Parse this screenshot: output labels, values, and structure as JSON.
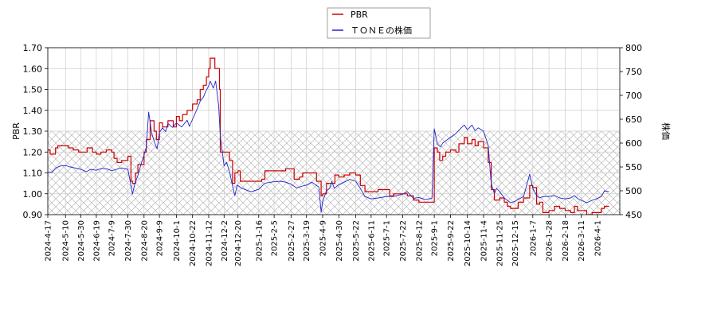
{
  "chart_data": {
    "type": "line",
    "legend_position": "top-center",
    "grid": true,
    "left_axis": {
      "label": "PBR",
      "range": [
        0.9,
        1.7
      ],
      "ticks": [
        "0.90",
        "1.00",
        "1.10",
        "1.20",
        "1.30",
        "1.40",
        "1.50",
        "1.60",
        "1.70"
      ],
      "shaded_band": [
        0.9,
        1.3
      ]
    },
    "right_axis": {
      "label": "株価",
      "range": [
        450,
        800
      ],
      "ticks": [
        "450",
        "500",
        "550",
        "600",
        "650",
        "700",
        "750",
        "800"
      ]
    },
    "x_range": [
      "2024-04-17",
      "2026-04-30"
    ],
    "x_tick_labels": [
      "2024-4-17",
      "2024-5-10",
      "2024-5-30",
      "2024-6-19",
      "2024-7-9",
      "2024-7-30",
      "2024-8-20",
      "2024-9-9",
      "2024-10-1",
      "2024-10-22",
      "2024-11-12",
      "2024-12-2",
      "2024-12-20",
      "2025-1-16",
      "2025-2-5",
      "2025-2-27",
      "2025-3-19",
      "2025-4-9",
      "2025-4-30",
      "2025-5-22",
      "2025-6-11",
      "2025-7-1",
      "2025-7-22",
      "2025-8-12",
      "2025-9-1",
      "2025-9-22",
      "2025-10-14",
      "2025-11-4",
      "2025-11-25",
      "2025-12-15",
      "2026-1-7",
      "2026-1-28",
      "2026-2-18",
      "2026-3-11",
      "2026-4-1"
    ],
    "series": [
      {
        "name": "PBR",
        "axis": "left",
        "color": "#cc0000",
        "style": "step",
        "points": [
          [
            "2024-04-17",
            1.21
          ],
          [
            "2024-04-20",
            1.19
          ],
          [
            "2024-04-27",
            1.22
          ],
          [
            "2024-04-30",
            1.23
          ],
          [
            "2024-05-10",
            1.23
          ],
          [
            "2024-05-14",
            1.22
          ],
          [
            "2024-05-20",
            1.21
          ],
          [
            "2024-05-27",
            1.2
          ],
          [
            "2024-06-03",
            1.2
          ],
          [
            "2024-06-07",
            1.22
          ],
          [
            "2024-06-14",
            1.2
          ],
          [
            "2024-06-19",
            1.19
          ],
          [
            "2024-06-25",
            1.2
          ],
          [
            "2024-07-02",
            1.21
          ],
          [
            "2024-07-09",
            1.2
          ],
          [
            "2024-07-12",
            1.17
          ],
          [
            "2024-07-16",
            1.15
          ],
          [
            "2024-07-22",
            1.16
          ],
          [
            "2024-07-30",
            1.18
          ],
          [
            "2024-08-03",
            1.06
          ],
          [
            "2024-08-05",
            1.05
          ],
          [
            "2024-08-09",
            1.1
          ],
          [
            "2024-08-12",
            1.14
          ],
          [
            "2024-08-20",
            1.2
          ],
          [
            "2024-08-23",
            1.26
          ],
          [
            "2024-08-28",
            1.35
          ],
          [
            "2024-09-02",
            1.3
          ],
          [
            "2024-09-05",
            1.26
          ],
          [
            "2024-09-09",
            1.34
          ],
          [
            "2024-09-13",
            1.32
          ],
          [
            "2024-09-20",
            1.35
          ],
          [
            "2024-09-27",
            1.32
          ],
          [
            "2024-10-01",
            1.37
          ],
          [
            "2024-10-05",
            1.35
          ],
          [
            "2024-10-09",
            1.38
          ],
          [
            "2024-10-15",
            1.4
          ],
          [
            "2024-10-22",
            1.43
          ],
          [
            "2024-10-28",
            1.45
          ],
          [
            "2024-11-01",
            1.5
          ],
          [
            "2024-11-05",
            1.52
          ],
          [
            "2024-11-09",
            1.56
          ],
          [
            "2024-11-12",
            1.6
          ],
          [
            "2024-11-14",
            1.65
          ],
          [
            "2024-11-20",
            1.6
          ],
          [
            "2024-11-26",
            1.5
          ],
          [
            "2024-11-27",
            1.2
          ],
          [
            "2024-12-02",
            1.2
          ],
          [
            "2024-12-09",
            1.16
          ],
          [
            "2024-12-13",
            1.05
          ],
          [
            "2024-12-16",
            1.1
          ],
          [
            "2024-12-20",
            1.11
          ],
          [
            "2024-12-23",
            1.06
          ],
          [
            "2025-01-06",
            1.06
          ],
          [
            "2025-01-16",
            1.06
          ],
          [
            "2025-01-20",
            1.07
          ],
          [
            "2025-01-24",
            1.11
          ],
          [
            "2025-02-05",
            1.11
          ],
          [
            "2025-02-14",
            1.11
          ],
          [
            "2025-02-20",
            1.12
          ],
          [
            "2025-02-27",
            1.12
          ],
          [
            "2025-03-03",
            1.07
          ],
          [
            "2025-03-10",
            1.08
          ],
          [
            "2025-03-14",
            1.1
          ],
          [
            "2025-03-19",
            1.1
          ],
          [
            "2025-03-25",
            1.1
          ],
          [
            "2025-04-01",
            1.06
          ],
          [
            "2025-04-07",
            0.99
          ],
          [
            "2025-04-09",
            1.0
          ],
          [
            "2025-04-14",
            1.05
          ],
          [
            "2025-04-21",
            1.05
          ],
          [
            "2025-04-25",
            1.09
          ],
          [
            "2025-04-30",
            1.08
          ],
          [
            "2025-05-07",
            1.09
          ],
          [
            "2025-05-14",
            1.1
          ],
          [
            "2025-05-22",
            1.09
          ],
          [
            "2025-05-28",
            1.04
          ],
          [
            "2025-06-03",
            1.01
          ],
          [
            "2025-06-11",
            1.01
          ],
          [
            "2025-06-20",
            1.02
          ],
          [
            "2025-07-01",
            1.02
          ],
          [
            "2025-07-05",
            0.99
          ],
          [
            "2025-07-10",
            1.0
          ],
          [
            "2025-07-22",
            1.0
          ],
          [
            "2025-07-28",
            0.99
          ],
          [
            "2025-08-05",
            0.97
          ],
          [
            "2025-08-12",
            0.96
          ],
          [
            "2025-08-20",
            0.96
          ],
          [
            "2025-08-29",
            0.96
          ],
          [
            "2025-09-01",
            1.22
          ],
          [
            "2025-09-05",
            1.2
          ],
          [
            "2025-09-08",
            1.16
          ],
          [
            "2025-09-12",
            1.18
          ],
          [
            "2025-09-16",
            1.2
          ],
          [
            "2025-09-22",
            1.21
          ],
          [
            "2025-09-29",
            1.2
          ],
          [
            "2025-10-03",
            1.24
          ],
          [
            "2025-10-10",
            1.27
          ],
          [
            "2025-10-14",
            1.24
          ],
          [
            "2025-10-20",
            1.26
          ],
          [
            "2025-10-24",
            1.23
          ],
          [
            "2025-10-28",
            1.25
          ],
          [
            "2025-11-04",
            1.22
          ],
          [
            "2025-11-10",
            1.15
          ],
          [
            "2025-11-14",
            1.02
          ],
          [
            "2025-11-18",
            0.97
          ],
          [
            "2025-11-25",
            0.98
          ],
          [
            "2025-12-01",
            0.96
          ],
          [
            "2025-12-05",
            0.94
          ],
          [
            "2025-12-09",
            0.93
          ],
          [
            "2025-12-15",
            0.93
          ],
          [
            "2025-12-19",
            0.96
          ],
          [
            "2025-12-26",
            0.98
          ],
          [
            "2026-01-03",
            1.04
          ],
          [
            "2026-01-07",
            1.03
          ],
          [
            "2026-01-12",
            0.95
          ],
          [
            "2026-01-16",
            0.96
          ],
          [
            "2026-01-20",
            0.91
          ],
          [
            "2026-01-28",
            0.92
          ],
          [
            "2026-02-04",
            0.94
          ],
          [
            "2026-02-11",
            0.93
          ],
          [
            "2026-02-18",
            0.92
          ],
          [
            "2026-02-25",
            0.91
          ],
          [
            "2026-03-02",
            0.94
          ],
          [
            "2026-03-06",
            0.92
          ],
          [
            "2026-03-11",
            0.92
          ],
          [
            "2026-03-18",
            0.9
          ],
          [
            "2026-03-25",
            0.91
          ],
          [
            "2026-04-01",
            0.91
          ],
          [
            "2026-04-06",
            0.93
          ],
          [
            "2026-04-10",
            0.94
          ],
          [
            "2026-04-16",
            0.94
          ]
        ]
      },
      {
        "name": "ＴＯＮＥの株価",
        "axis": "right",
        "color": "#2222cc",
        "style": "line",
        "points": [
          [
            "2024-04-17",
            540
          ],
          [
            "2024-04-22",
            538
          ],
          [
            "2024-04-28",
            548
          ],
          [
            "2024-05-03",
            552
          ],
          [
            "2024-05-10",
            553
          ],
          [
            "2024-05-16",
            550
          ],
          [
            "2024-05-22",
            548
          ],
          [
            "2024-05-30",
            545
          ],
          [
            "2024-06-06",
            540
          ],
          [
            "2024-06-12",
            545
          ],
          [
            "2024-06-19",
            543
          ],
          [
            "2024-06-26",
            547
          ],
          [
            "2024-07-03",
            546
          ],
          [
            "2024-07-09",
            542
          ],
          [
            "2024-07-15",
            545
          ],
          [
            "2024-07-22",
            548
          ],
          [
            "2024-07-30",
            545
          ],
          [
            "2024-08-02",
            520
          ],
          [
            "2024-08-05",
            493
          ],
          [
            "2024-08-08",
            515
          ],
          [
            "2024-08-12",
            532
          ],
          [
            "2024-08-16",
            555
          ],
          [
            "2024-08-20",
            575
          ],
          [
            "2024-08-23",
            592
          ],
          [
            "2024-08-26",
            665
          ],
          [
            "2024-08-30",
            620
          ],
          [
            "2024-09-03",
            600
          ],
          [
            "2024-09-06",
            588
          ],
          [
            "2024-09-09",
            622
          ],
          [
            "2024-09-13",
            632
          ],
          [
            "2024-09-17",
            624
          ],
          [
            "2024-09-20",
            641
          ],
          [
            "2024-09-26",
            633
          ],
          [
            "2024-10-01",
            642
          ],
          [
            "2024-10-08",
            634
          ],
          [
            "2024-10-15",
            648
          ],
          [
            "2024-10-18",
            635
          ],
          [
            "2024-10-22",
            650
          ],
          [
            "2024-10-28",
            672
          ],
          [
            "2024-11-01",
            688
          ],
          [
            "2024-11-05",
            696
          ],
          [
            "2024-11-08",
            708
          ],
          [
            "2024-11-12",
            720
          ],
          [
            "2024-11-14",
            730
          ],
          [
            "2024-11-18",
            715
          ],
          [
            "2024-11-21",
            730
          ],
          [
            "2024-11-25",
            678
          ],
          [
            "2024-11-27",
            615
          ],
          [
            "2024-12-02",
            552
          ],
          [
            "2024-12-05",
            560
          ],
          [
            "2024-12-09",
            540
          ],
          [
            "2024-12-13",
            510
          ],
          [
            "2024-12-16",
            490
          ],
          [
            "2024-12-19",
            512
          ],
          [
            "2024-12-24",
            506
          ],
          [
            "2025-01-06",
            498
          ],
          [
            "2025-01-16",
            503
          ],
          [
            "2025-01-24",
            516
          ],
          [
            "2025-02-05",
            519
          ],
          [
            "2025-02-14",
            520
          ],
          [
            "2025-02-20",
            518
          ],
          [
            "2025-02-27",
            514
          ],
          [
            "2025-03-06",
            506
          ],
          [
            "2025-03-14",
            510
          ],
          [
            "2025-03-19",
            512
          ],
          [
            "2025-03-26",
            518
          ],
          [
            "2025-04-04",
            508
          ],
          [
            "2025-04-07",
            455
          ],
          [
            "2025-04-09",
            478
          ],
          [
            "2025-04-14",
            500
          ],
          [
            "2025-04-18",
            505
          ],
          [
            "2025-04-21",
            520
          ],
          [
            "2025-04-24",
            505
          ],
          [
            "2025-04-30",
            513
          ],
          [
            "2025-05-07",
            518
          ],
          [
            "2025-05-14",
            524
          ],
          [
            "2025-05-22",
            520
          ],
          [
            "2025-05-28",
            505
          ],
          [
            "2025-06-03",
            488
          ],
          [
            "2025-06-11",
            483
          ],
          [
            "2025-06-20",
            485
          ],
          [
            "2025-07-01",
            488
          ],
          [
            "2025-07-10",
            488
          ],
          [
            "2025-07-22",
            493
          ],
          [
            "2025-07-28",
            498
          ],
          [
            "2025-08-05",
            484
          ],
          [
            "2025-08-12",
            486
          ],
          [
            "2025-08-20",
            482
          ],
          [
            "2025-08-29",
            484
          ],
          [
            "2025-09-01",
            630
          ],
          [
            "2025-09-05",
            598
          ],
          [
            "2025-09-09",
            592
          ],
          [
            "2025-09-12",
            600
          ],
          [
            "2025-09-16",
            605
          ],
          [
            "2025-09-22",
            612
          ],
          [
            "2025-09-29",
            620
          ],
          [
            "2025-10-06",
            632
          ],
          [
            "2025-10-10",
            638
          ],
          [
            "2025-10-14",
            628
          ],
          [
            "2025-10-20",
            638
          ],
          [
            "2025-10-24",
            626
          ],
          [
            "2025-10-28",
            632
          ],
          [
            "2025-11-04",
            625
          ],
          [
            "2025-11-10",
            595
          ],
          [
            "2025-11-14",
            515
          ],
          [
            "2025-11-18",
            495
          ],
          [
            "2025-11-21",
            505
          ],
          [
            "2025-11-25",
            498
          ],
          [
            "2025-12-01",
            485
          ],
          [
            "2025-12-05",
            480
          ],
          [
            "2025-12-09",
            475
          ],
          [
            "2025-12-15",
            478
          ],
          [
            "2025-12-19",
            482
          ],
          [
            "2025-12-26",
            488
          ],
          [
            "2026-01-03",
            535
          ],
          [
            "2026-01-07",
            505
          ],
          [
            "2026-01-12",
            490
          ],
          [
            "2026-01-16",
            485
          ],
          [
            "2026-01-20",
            488
          ],
          [
            "2026-01-28",
            488
          ],
          [
            "2026-02-04",
            490
          ],
          [
            "2026-02-11",
            485
          ],
          [
            "2026-02-18",
            483
          ],
          [
            "2026-02-25",
            485
          ],
          [
            "2026-03-02",
            490
          ],
          [
            "2026-03-06",
            484
          ],
          [
            "2026-03-11",
            480
          ],
          [
            "2026-03-18",
            475
          ],
          [
            "2026-03-25",
            480
          ],
          [
            "2026-04-01",
            484
          ],
          [
            "2026-04-06",
            488
          ],
          [
            "2026-04-10",
            500
          ],
          [
            "2026-04-16",
            498
          ]
        ]
      }
    ]
  }
}
